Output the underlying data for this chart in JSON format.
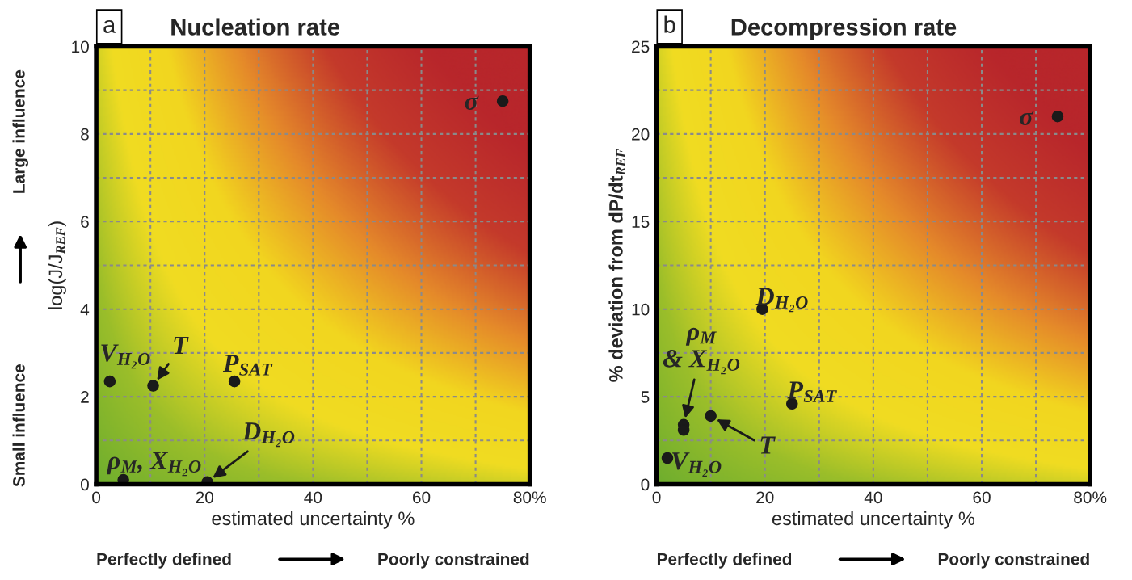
{
  "chart_data": [
    {
      "type": "scatter",
      "title": "Nucleation rate",
      "xlabel": "estimated uncertainty %",
      "ylabel": "log(J/J$_{REF}$)",
      "xlim": [
        0,
        80
      ],
      "xticks": [
        0,
        {
          "value": 10,
          "label": null
        },
        20,
        {
          "value": 30,
          "label": null
        },
        40,
        {
          "value": 50,
          "label": null
        },
        60,
        {
          "value": 70,
          "label": null
        },
        {
          "value": 80,
          "label": "80%"
        }
      ],
      "ylim": [
        0,
        10
      ],
      "yticks": [
        0,
        {
          "value": 1,
          "label": null
        },
        2,
        {
          "value": 3,
          "label": null
        },
        4,
        {
          "value": 5,
          "label": null
        },
        6,
        {
          "value": 7,
          "label": null
        },
        8,
        {
          "value": 9,
          "label": null
        },
        10
      ],
      "grid": true,
      "marker": "circle",
      "legend": false,
      "series": [
        {
          "color": "#1a1a1a",
          "x": [
            75,
            2.5,
            10.5,
            25.5,
            5,
            20.5
          ],
          "values": [
            8.75,
            2.35,
            2.25,
            2.35,
            0.1,
            0.05
          ]
        }
      ],
      "annotations": [
        "a",
        {
          "text": "σ",
          "x": 75,
          "y": 8.75
        },
        {
          "text": "V$_{H₂O}$",
          "x": 2.5,
          "y": 2.35
        },
        {
          "text": "T",
          "x": 10.5,
          "y": 2.25
        },
        {
          "text": "P$_{SAT}$",
          "x": 25.5,
          "y": 2.35
        },
        {
          "text": "ρ$_{M}$, X$_{H₂O}$",
          "x": 5,
          "y": 0.1
        },
        {
          "text": "D$_{H₂O}$",
          "x": 20.5,
          "y": 0.05
        },
        "Small influence",
        "Large influence",
        "Perfectly defined",
        "Poorly constrained"
      ]
    },
    {
      "type": "scatter",
      "title": "Decompression rate",
      "xlabel": "estimated uncertainty %",
      "ylabel": "% deviation from dP/dt$_{REF}$",
      "xlim": [
        0,
        80
      ],
      "xticks": [
        0,
        {
          "value": 10,
          "label": null
        },
        20,
        {
          "value": 30,
          "label": null
        },
        40,
        {
          "value": 50,
          "label": null
        },
        60,
        {
          "value": 70,
          "label": null
        },
        {
          "value": 80,
          "label": "80%"
        }
      ],
      "ylim": [
        0,
        25
      ],
      "yticks": [
        0,
        {
          "value": 2.5,
          "label": null
        },
        5,
        {
          "value": 7.5,
          "label": null
        },
        10,
        {
          "value": 12.5,
          "label": null
        },
        15,
        {
          "value": 17.5,
          "label": null
        },
        20,
        {
          "value": 22.5,
          "label": null
        },
        25
      ],
      "grid": true,
      "marker": "circle",
      "legend": false,
      "series": [
        {
          "color": "#1a1a1a",
          "x": [
            74,
            19.5,
            5,
            5,
            25,
            10,
            2
          ],
          "values": [
            21,
            10,
            3.4,
            3.1,
            4.6,
            3.9,
            1.5
          ]
        }
      ],
      "annotations": [
        "b",
        {
          "text": "σ",
          "x": 74,
          "y": 21
        },
        {
          "text": "D$_{H₂O}$",
          "x": 19.5,
          "y": 10
        },
        {
          "text": "ρ$_{M}$\n& X$_{H₂O}$",
          "x": 5,
          "y": 3.4
        },
        {
          "text": "P$_{SAT}$",
          "x": 25,
          "y": 4.6
        },
        {
          "text": "T",
          "x": 10,
          "y": 3.9
        },
        {
          "text": "V$_{H₂O}$",
          "x": 2,
          "y": 1.5
        },
        "Perfectly defined",
        "Poorly constrained"
      ]
    }
  ]
}
